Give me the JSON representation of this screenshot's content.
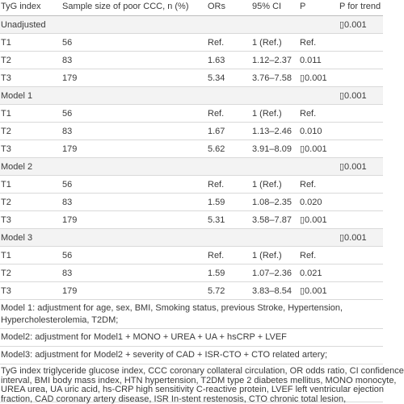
{
  "table": {
    "header": [
      "TyG index",
      "Sample size of poor CCC, n (%)",
      "ORs",
      "95% CI",
      "P",
      "P for trend"
    ],
    "groups": [
      {
        "label": "Unadjusted",
        "p_trend": "▯0.001",
        "rows": [
          [
            "T1",
            "56",
            "Ref.",
            "1 (Ref.)",
            "Ref."
          ],
          [
            "T2",
            "83",
            "1.63",
            "1.12–2.37",
            "0.011"
          ],
          [
            "T3",
            "179",
            "5.34",
            "3.76–7.58",
            "▯0.001"
          ]
        ]
      },
      {
        "label": "Model 1",
        "p_trend": "▯0.001",
        "rows": [
          [
            "T1",
            "56",
            "Ref.",
            "1 (Ref.)",
            "Ref."
          ],
          [
            "T2",
            "83",
            "1.67",
            "1.13–2.46",
            "0.010"
          ],
          [
            "T3",
            "179",
            "5.62",
            "3.91–8.09",
            "▯0.001"
          ]
        ]
      },
      {
        "label": "Model 2",
        "p_trend": "▯0.001",
        "rows": [
          [
            "T1",
            "56",
            "Ref.",
            "1 (Ref.)",
            "Ref."
          ],
          [
            "T2",
            "83",
            "1.59",
            "1.08–2.35",
            "0.020"
          ],
          [
            "T3",
            "179",
            "5.31",
            "3.58–7.87",
            "▯0.001"
          ]
        ]
      },
      {
        "label": "Model 3",
        "p_trend": "▯0.001",
        "rows": [
          [
            "T1",
            "56",
            "Ref.",
            "1 (Ref.)",
            "Ref."
          ],
          [
            "T2",
            "83",
            "1.59",
            "1.07–2.36",
            "0.021"
          ],
          [
            "T3",
            "179",
            "5.72",
            "3.83–8.54",
            "▯0.001"
          ]
        ]
      }
    ]
  },
  "notes": [
    [
      "Model 1: adjustment for age, sex, BMI, Smoking status, previous Stroke, Hypertension,",
      "Hypercholesterolemia, T2DM;"
    ],
    [
      "Model2: adjustment for Model1 + MONO + UREA + UA + hsCRP + LVEF"
    ],
    [
      "Model3: adjustment for Model2 + severity of CAD + ISR-CTO + CTO related artery;"
    ],
    [
      "TyG index triglyceride glucose index, CCC coronary collateral circulation, OR odds ratio, CI confidence",
      "interval, BMI body mass index, HTN hypertension, T2DM type 2 diabetes mellitus, MONO monocyte,",
      "UREA urea, UA uric acid, hs-CRP high sensitivity C-reactive protein, LVEF left ventricular ejection",
      "fraction, CAD coronary artery disease, ISR In-stent restenosis, CTO chronic total lesion,"
    ]
  ]
}
